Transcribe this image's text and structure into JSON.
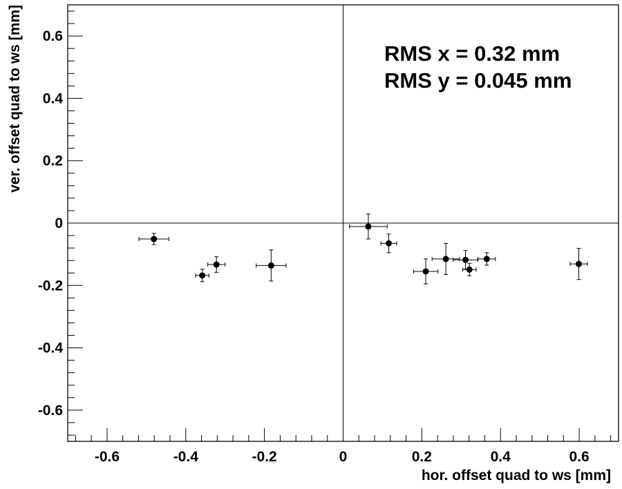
{
  "chart_data": {
    "type": "scatter",
    "xlabel": "hor. offset quad to ws [mm]",
    "ylabel": "ver. offset quad to ws [mm]",
    "xlim": [
      -0.7,
      0.7
    ],
    "ylim": [
      -0.7,
      0.7
    ],
    "x_ticks": [
      -0.6,
      -0.4,
      -0.2,
      0,
      0.2,
      0.4,
      0.6
    ],
    "x_tick_labels": [
      "-0.6",
      "-0.4",
      "-0.2",
      "0",
      "0.2",
      "0.4",
      "0.6"
    ],
    "y_ticks": [
      -0.6,
      -0.4,
      -0.2,
      0,
      0.2,
      0.4,
      0.6
    ],
    "y_tick_labels": [
      "-0.6",
      "-0.4",
      "-0.2",
      "0",
      "0.2",
      "0.4",
      "0.6"
    ],
    "grid": false,
    "reference_lines": {
      "x": 0,
      "y": 0
    },
    "annotations": [
      "RMS x = 0.32 mm",
      "RMS y = 0.045 mm"
    ],
    "points": [
      {
        "x": -0.481,
        "y": -0.051,
        "xerr": 0.038,
        "yerr": 0.018
      },
      {
        "x": -0.358,
        "y": -0.168,
        "xerr": 0.017,
        "yerr": 0.02
      },
      {
        "x": -0.322,
        "y": -0.133,
        "xerr": 0.022,
        "yerr": 0.025
      },
      {
        "x": -0.183,
        "y": -0.136,
        "xerr": 0.038,
        "yerr": 0.05
      },
      {
        "x": 0.064,
        "y": -0.011,
        "xerr": 0.048,
        "yerr": 0.04
      },
      {
        "x": 0.116,
        "y": -0.065,
        "xerr": 0.02,
        "yerr": 0.03
      },
      {
        "x": 0.21,
        "y": -0.155,
        "xerr": 0.031,
        "yerr": 0.04
      },
      {
        "x": 0.261,
        "y": -0.115,
        "xerr": 0.035,
        "yerr": 0.05
      },
      {
        "x": 0.311,
        "y": -0.118,
        "xerr": 0.031,
        "yerr": 0.03
      },
      {
        "x": 0.321,
        "y": -0.149,
        "xerr": 0.017,
        "yerr": 0.02
      },
      {
        "x": 0.365,
        "y": -0.115,
        "xerr": 0.022,
        "yerr": 0.02
      },
      {
        "x": 0.599,
        "y": -0.131,
        "xerr": 0.022,
        "yerr": 0.05
      }
    ]
  }
}
